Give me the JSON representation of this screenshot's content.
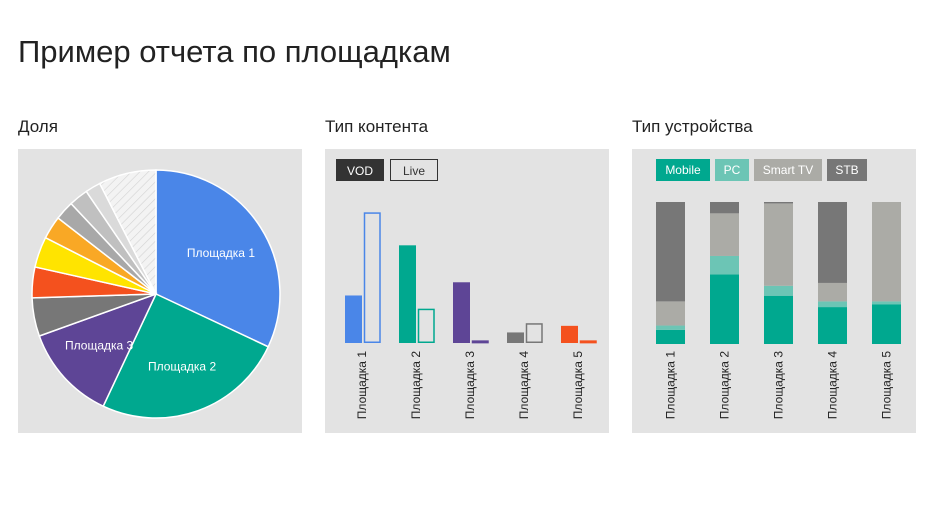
{
  "page": {
    "title": "Пример отчета по площадкам"
  },
  "panels": {
    "share": {
      "title": "Доля"
    },
    "content": {
      "title": "Тип контента"
    },
    "device": {
      "title": "Тип устройства"
    }
  },
  "colors": {
    "blue": "#4a86e8",
    "teal": "#00a88f",
    "purple": "#5e4596",
    "gray": "#777777",
    "orange": "#f4511e",
    "panel_bg": "#e3e3e3"
  },
  "chart_data": [
    {
      "type": "pie",
      "title": "Доля",
      "labels": [
        "Площадка 1",
        "Площадка 2",
        "Площадка 3",
        "",
        "",
        "",
        "",
        "",
        "",
        "",
        ""
      ],
      "values": [
        32,
        25,
        12.5,
        5,
        4,
        4,
        3,
        2.5,
        2.5,
        2,
        7.5
      ],
      "colors": [
        "#4a86e8",
        "#00a88f",
        "#5e4596",
        "#777777",
        "#f4511e",
        "#ffe400",
        "#f9a825",
        "#a8a8a8",
        "#c0c0c0",
        "#dadada",
        "#f2f2f2"
      ],
      "hatched_last": true
    },
    {
      "type": "bar",
      "title": "Тип контента",
      "categories": [
        "Площадка 1",
        "Площадка 2",
        "Площадка 3",
        "Площадка 4",
        "Площадка 5"
      ],
      "legend": [
        "VOD",
        "Live"
      ],
      "bar_colors": [
        "#4a86e8",
        "#00a88f",
        "#5e4596",
        "#777777",
        "#f4511e"
      ],
      "series": [
        {
          "name": "VOD",
          "values": [
            36,
            74,
            46,
            8,
            13
          ]
        },
        {
          "name": "Live",
          "values": [
            99,
            26,
            2,
            15,
            2
          ]
        }
      ],
      "ylim": [
        0,
        100
      ]
    },
    {
      "type": "bar",
      "stacked": true,
      "title": "Тип устройства",
      "categories": [
        "Площадка 1",
        "Площадка 2",
        "Площадка 3",
        "Площадка 4",
        "Площадка 5"
      ],
      "legend": [
        "Mobile",
        "PC",
        "Smart TV",
        "STB"
      ],
      "series": [
        {
          "name": "Mobile",
          "color": "#00a88f",
          "values": [
            10,
            49,
            34,
            26,
            28
          ]
        },
        {
          "name": "PC",
          "color": "#6cc5b5",
          "values": [
            3,
            13,
            7,
            4,
            2
          ]
        },
        {
          "name": "Smart TV",
          "color": "#ababa6",
          "values": [
            17,
            30,
            58,
            13,
            70
          ]
        },
        {
          "name": "STB",
          "color": "#777777",
          "values": [
            70,
            8,
            1,
            57,
            0
          ]
        }
      ],
      "ylim": [
        0,
        100
      ]
    }
  ]
}
